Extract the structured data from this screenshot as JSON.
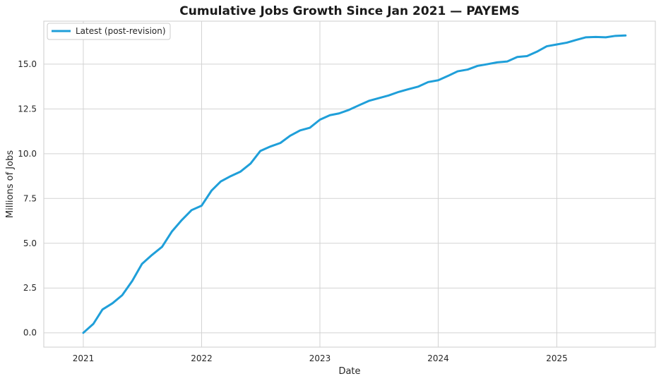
{
  "chart_data": {
    "type": "line",
    "title": "Cumulative Jobs Growth Since Jan 2021 — PAYEMS",
    "xlabel": "Date",
    "ylabel": "Millions of Jobs",
    "xlim": [
      "2020-09-01",
      "2025-11-01"
    ],
    "ylim": [
      -0.8,
      17.4
    ],
    "x_ticks": [
      "2021",
      "2022",
      "2023",
      "2024",
      "2025"
    ],
    "y_ticks": [
      "0.0",
      "2.5",
      "5.0",
      "7.5",
      "10.0",
      "12.5",
      "15.0"
    ],
    "grid": true,
    "legend_position": "top-left",
    "series": [
      {
        "name": "Latest (post-revision)",
        "color": "#1f9fd9",
        "x": [
          "2021-01",
          "2021-02",
          "2021-03",
          "2021-04",
          "2021-05",
          "2021-06",
          "2021-07",
          "2021-08",
          "2021-09",
          "2021-10",
          "2021-11",
          "2021-12",
          "2022-01",
          "2022-02",
          "2022-03",
          "2022-04",
          "2022-05",
          "2022-06",
          "2022-07",
          "2022-08",
          "2022-09",
          "2022-10",
          "2022-11",
          "2022-12",
          "2023-01",
          "2023-02",
          "2023-03",
          "2023-04",
          "2023-05",
          "2023-06",
          "2023-07",
          "2023-08",
          "2023-09",
          "2023-10",
          "2023-11",
          "2023-12",
          "2024-01",
          "2024-02",
          "2024-03",
          "2024-04",
          "2024-05",
          "2024-06",
          "2024-07",
          "2024-08",
          "2024-09",
          "2024-10",
          "2024-11",
          "2024-12",
          "2025-01",
          "2025-02",
          "2025-03",
          "2025-04",
          "2025-05",
          "2025-06",
          "2025-07",
          "2025-08"
        ],
        "values": [
          0.0,
          0.5,
          1.3,
          1.65,
          2.1,
          2.9,
          3.85,
          4.35,
          4.8,
          5.65,
          6.3,
          6.85,
          7.1,
          7.95,
          8.45,
          8.75,
          9.0,
          9.45,
          10.15,
          10.4,
          10.6,
          11.0,
          11.3,
          11.45,
          11.9,
          12.15,
          12.25,
          12.45,
          12.7,
          12.95,
          13.1,
          13.25,
          13.45,
          13.6,
          13.75,
          14.0,
          14.1,
          14.35,
          14.6,
          14.7,
          14.9,
          15.0,
          15.1,
          15.15,
          15.4,
          15.45,
          15.7,
          16.0,
          16.1,
          16.2,
          16.35,
          16.5,
          16.52,
          16.5,
          16.58,
          16.6
        ]
      }
    ]
  }
}
